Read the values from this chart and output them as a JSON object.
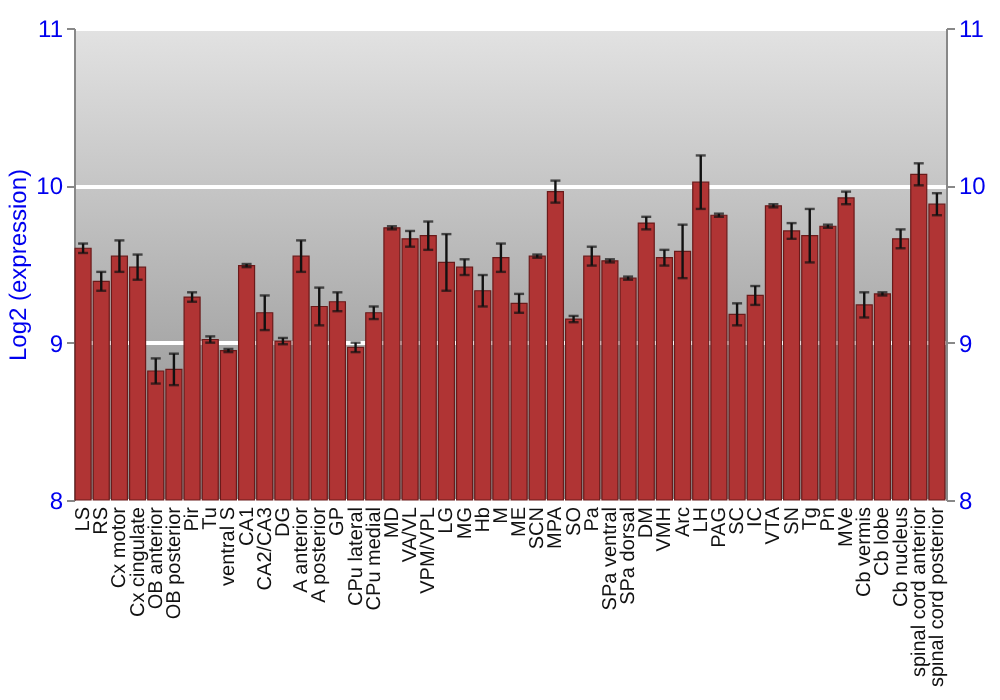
{
  "chart_data": {
    "type": "bar",
    "ylabel": "Log2 (expression)",
    "categories": [
      "LS",
      "RS",
      "Cx motor",
      "Cx cingulate",
      "OB anterior",
      "OB posterior",
      "Pir",
      "Tu",
      "ventral S",
      "CA1",
      "CA2/CA3",
      "DG",
      "A anterior",
      "A posterior",
      "GP",
      "CPu lateral",
      "CPu medial",
      "MD",
      "VA/VL",
      "VPM/VPL",
      "LG",
      "MG",
      "Hb",
      "M",
      "ME",
      "SCN",
      "MPA",
      "SO",
      "Pa",
      "SPa ventral",
      "SPa dorsal",
      "DM",
      "VMH",
      "Arc",
      "LH",
      "PAG",
      "SC",
      "IC",
      "VTA",
      "SN",
      "Tg",
      "Pn",
      "MVe",
      "Cb vermis",
      "Cb lobe",
      "Cb nucleus",
      "spinal cord anterior",
      "spinal cord posterior"
    ],
    "series": [
      {
        "color": "#b03434",
        "values": [
          9.6,
          9.39,
          9.55,
          9.48,
          8.82,
          8.83,
          9.29,
          9.02,
          8.95,
          9.49,
          9.19,
          9.01,
          9.55,
          9.23,
          9.26,
          8.97,
          9.19,
          9.73,
          9.66,
          9.68,
          9.51,
          9.48,
          9.33,
          9.54,
          9.25,
          9.55,
          9.96,
          9.15,
          9.55,
          9.52,
          9.41,
          9.76,
          9.54,
          9.58,
          10.02,
          9.81,
          9.18,
          9.3,
          9.87,
          9.71,
          9.68,
          9.74,
          9.92,
          9.24,
          9.31,
          9.66,
          10.07,
          9.88
        ],
        "errors": [
          0.03,
          0.06,
          0.1,
          0.08,
          0.08,
          0.1,
          0.03,
          0.02,
          0.01,
          0.01,
          0.11,
          0.02,
          0.1,
          0.12,
          0.06,
          0.03,
          0.04,
          0.01,
          0.05,
          0.09,
          0.18,
          0.05,
          0.1,
          0.09,
          0.06,
          0.01,
          0.07,
          0.02,
          0.06,
          0.01,
          0.01,
          0.04,
          0.05,
          0.17,
          0.17,
          0.01,
          0.07,
          0.06,
          0.01,
          0.05,
          0.17,
          0.01,
          0.04,
          0.08,
          0.01,
          0.06,
          0.07,
          0.07
        ]
      }
    ],
    "ylim": [
      8,
      11
    ],
    "yticks": [
      8,
      9,
      10,
      11
    ],
    "y2lim": [
      8,
      11
    ],
    "y2ticks": [
      8,
      9,
      10,
      11
    ],
    "grid": "y"
  }
}
